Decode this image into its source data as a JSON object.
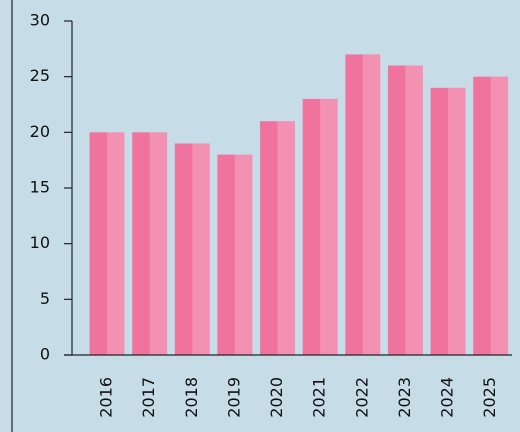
{
  "chart_data": {
    "type": "bar",
    "categories": [
      "2016",
      "2017",
      "2018",
      "2019",
      "2020",
      "2021",
      "2022",
      "2023",
      "2024",
      "2025"
    ],
    "values": [
      20,
      20,
      19,
      18,
      21,
      23,
      27,
      26,
      24,
      25
    ],
    "color": "#f0739e",
    "ylim": [
      0,
      30
    ],
    "yticks": [
      0,
      5,
      10,
      15,
      20,
      25,
      30
    ],
    "grid": false
  }
}
